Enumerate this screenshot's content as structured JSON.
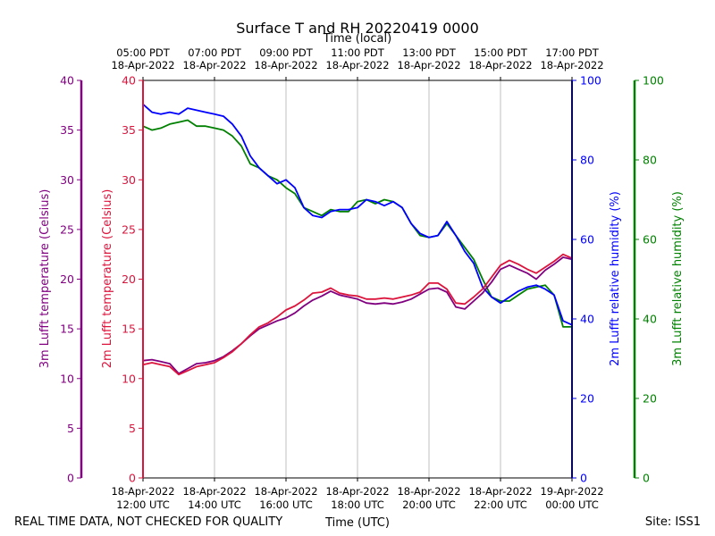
{
  "chart_data": {
    "type": "line",
    "title": "Surface T and RH 20220419 0000",
    "top_axis_label": "Time (local)",
    "xlabel": "Time (UTC)",
    "x_ticks_utc": [
      {
        "date": "18-Apr-2022",
        "time": "12:00 UTC"
      },
      {
        "date": "18-Apr-2022",
        "time": "14:00 UTC"
      },
      {
        "date": "18-Apr-2022",
        "time": "16:00 UTC"
      },
      {
        "date": "18-Apr-2022",
        "time": "18:00 UTC"
      },
      {
        "date": "18-Apr-2022",
        "time": "20:00 UTC"
      },
      {
        "date": "18-Apr-2022",
        "time": "22:00 UTC"
      },
      {
        "date": "19-Apr-2022",
        "time": "00:00 UTC"
      }
    ],
    "x_ticks_local": [
      {
        "time": "05:00 PDT",
        "date": "18-Apr-2022"
      },
      {
        "time": "07:00 PDT",
        "date": "18-Apr-2022"
      },
      {
        "time": "09:00 PDT",
        "date": "18-Apr-2022"
      },
      {
        "time": "11:00 PDT",
        "date": "18-Apr-2022"
      },
      {
        "time": "13:00 PDT",
        "date": "18-Apr-2022"
      },
      {
        "time": "15:00 PDT",
        "date": "18-Apr-2022"
      },
      {
        "time": "17:00 PDT",
        "date": "18-Apr-2022"
      }
    ],
    "xlim_hours": [
      12,
      24
    ],
    "axes": [
      {
        "id": "t3m",
        "label": "3m Lufft temperature (Celsius)",
        "color": "#800080",
        "lim": [
          0,
          40
        ],
        "ticks": [
          0,
          5,
          10,
          15,
          20,
          25,
          30,
          35,
          40
        ]
      },
      {
        "id": "t2m",
        "label": "2m Lufft temperature (Celsius)",
        "color": "#dc143c",
        "lim": [
          0,
          40
        ],
        "ticks": [
          0,
          5,
          10,
          15,
          20,
          25,
          30,
          35,
          40
        ]
      },
      {
        "id": "rh2m",
        "label": "2m Lufft relative humidity (%)",
        "color": "#0000ff",
        "lim": [
          0,
          100
        ],
        "ticks": [
          0,
          20,
          40,
          60,
          80,
          100
        ]
      },
      {
        "id": "rh3m",
        "label": "3m Lufft relative humidity (%)",
        "color": "#008000",
        "lim": [
          0,
          100
        ],
        "ticks": [
          0,
          20,
          40,
          60,
          80,
          100
        ]
      }
    ],
    "series": [
      {
        "name": "3m Lufft temperature",
        "axis": "t3m",
        "color": "#800080",
        "x": [
          12.0,
          12.25,
          12.5,
          12.75,
          13.0,
          13.25,
          13.5,
          13.75,
          14.0,
          14.25,
          14.5,
          14.75,
          15.0,
          15.25,
          15.5,
          15.75,
          16.0,
          16.25,
          16.5,
          16.75,
          17.0,
          17.25,
          17.5,
          17.75,
          18.0,
          18.25,
          18.5,
          18.75,
          19.0,
          19.25,
          19.5,
          19.75,
          20.0,
          20.25,
          20.5,
          20.75,
          21.0,
          21.25,
          21.5,
          21.75,
          22.0,
          22.25,
          22.5,
          22.75,
          23.0,
          23.25,
          23.5,
          23.75,
          24.0
        ],
        "values": [
          11.8,
          11.9,
          11.7,
          11.5,
          10.5,
          11.0,
          11.5,
          11.6,
          11.8,
          12.2,
          12.8,
          13.5,
          14.3,
          15.0,
          15.4,
          15.8,
          16.1,
          16.6,
          17.3,
          17.9,
          18.3,
          18.8,
          18.4,
          18.2,
          18.0,
          17.6,
          17.5,
          17.6,
          17.5,
          17.7,
          18.0,
          18.5,
          19.0,
          19.1,
          18.7,
          17.2,
          17.0,
          17.8,
          18.6,
          19.7,
          21.0,
          21.4,
          21.0,
          20.6,
          20.0,
          20.9,
          21.5,
          22.2,
          22.0
        ]
      },
      {
        "name": "2m Lufft temperature",
        "axis": "t2m",
        "color": "#dc143c",
        "x": [
          12.0,
          12.25,
          12.5,
          12.75,
          13.0,
          13.25,
          13.5,
          13.75,
          14.0,
          14.25,
          14.5,
          14.75,
          15.0,
          15.25,
          15.5,
          15.75,
          16.0,
          16.25,
          16.5,
          16.75,
          17.0,
          17.25,
          17.5,
          17.75,
          18.0,
          18.25,
          18.5,
          18.75,
          19.0,
          19.25,
          19.5,
          19.75,
          20.0,
          20.25,
          20.5,
          20.75,
          21.0,
          21.25,
          21.5,
          21.75,
          22.0,
          22.25,
          22.5,
          22.75,
          23.0,
          23.25,
          23.5,
          23.75,
          24.0
        ],
        "values": [
          11.4,
          11.6,
          11.4,
          11.2,
          10.4,
          10.8,
          11.2,
          11.4,
          11.6,
          12.1,
          12.7,
          13.5,
          14.4,
          15.2,
          15.6,
          16.2,
          16.9,
          17.3,
          17.9,
          18.6,
          18.7,
          19.1,
          18.6,
          18.4,
          18.3,
          18.0,
          18.0,
          18.1,
          18.0,
          18.2,
          18.4,
          18.7,
          19.6,
          19.6,
          19.0,
          17.6,
          17.5,
          18.2,
          19.0,
          20.2,
          21.4,
          21.9,
          21.5,
          21.0,
          20.6,
          21.2,
          21.8,
          22.5,
          22.1
        ]
      },
      {
        "name": "2m Lufft relative humidity",
        "axis": "rh2m",
        "color": "#0000ff",
        "x": [
          12.0,
          12.25,
          12.5,
          12.75,
          13.0,
          13.25,
          13.5,
          13.75,
          14.0,
          14.25,
          14.5,
          14.75,
          15.0,
          15.25,
          15.5,
          15.75,
          16.0,
          16.25,
          16.5,
          16.75,
          17.0,
          17.25,
          17.5,
          17.75,
          18.0,
          18.25,
          18.5,
          18.75,
          19.0,
          19.25,
          19.5,
          19.75,
          20.0,
          20.25,
          20.5,
          20.75,
          21.0,
          21.25,
          21.5,
          21.75,
          22.0,
          22.25,
          22.5,
          22.75,
          23.0,
          23.25,
          23.5,
          23.75,
          24.0
        ],
        "values": [
          94.0,
          92.0,
          91.5,
          92.0,
          91.5,
          93.0,
          92.5,
          92.0,
          91.5,
          91.0,
          89.0,
          86.0,
          81.0,
          78.0,
          76.0,
          74.0,
          75.0,
          73.0,
          68.0,
          66.0,
          65.5,
          67.0,
          67.5,
          67.5,
          68.0,
          70.0,
          69.5,
          68.5,
          69.5,
          68.0,
          64.0,
          61.5,
          60.5,
          61.0,
          64.5,
          61.0,
          57.0,
          54.0,
          48.0,
          45.5,
          44.0,
          45.5,
          47.0,
          48.0,
          48.5,
          47.5,
          46.0,
          39.5,
          38.5
        ]
      },
      {
        "name": "3m Lufft relative humidity",
        "axis": "rh3m",
        "color": "#008000",
        "x": [
          12.0,
          12.25,
          12.5,
          12.75,
          13.0,
          13.25,
          13.5,
          13.75,
          14.0,
          14.25,
          14.5,
          14.75,
          15.0,
          15.25,
          15.5,
          15.75,
          16.0,
          16.25,
          16.5,
          16.75,
          17.0,
          17.25,
          17.5,
          17.75,
          18.0,
          18.25,
          18.5,
          18.75,
          19.0,
          19.25,
          19.5,
          19.75,
          20.0,
          20.25,
          20.5,
          20.75,
          21.0,
          21.25,
          21.5,
          21.75,
          22.0,
          22.25,
          22.5,
          22.75,
          23.0,
          23.25,
          23.5,
          23.75,
          24.0
        ],
        "values": [
          88.5,
          87.5,
          88.0,
          89.0,
          89.5,
          90.0,
          88.5,
          88.5,
          88.0,
          87.5,
          86.0,
          83.5,
          79.0,
          78.0,
          76.0,
          75.0,
          73.0,
          71.5,
          68.0,
          67.0,
          66.0,
          67.5,
          67.0,
          67.0,
          69.5,
          70.0,
          69.0,
          70.0,
          69.5,
          68.0,
          64.0,
          61.0,
          60.5,
          61.0,
          64.0,
          61.0,
          58.0,
          55.0,
          50.0,
          45.5,
          44.5,
          44.5,
          46.0,
          47.5,
          48.0,
          48.5,
          46.0,
          38.0,
          38.0
        ]
      }
    ]
  },
  "footer": {
    "left": "REAL TIME DATA, NOT CHECKED FOR QUALITY",
    "right": "Site: ISS1"
  }
}
